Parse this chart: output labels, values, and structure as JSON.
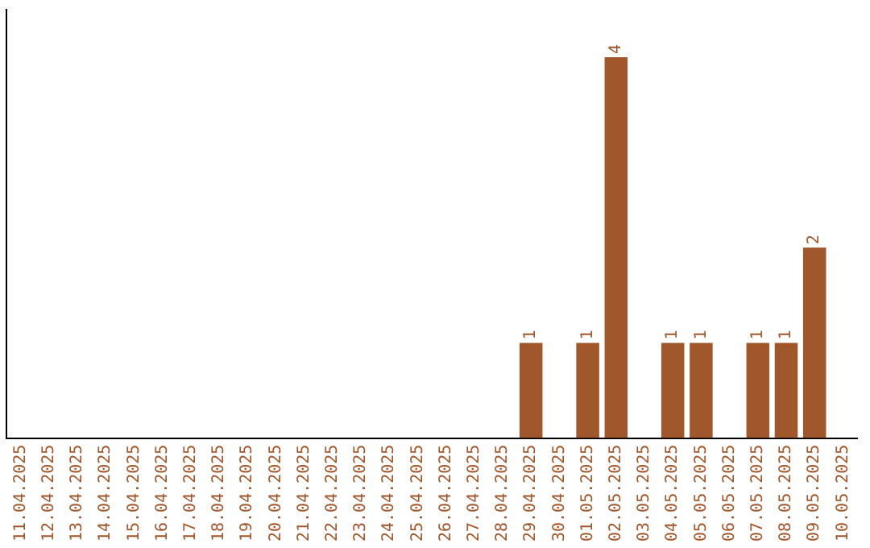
{
  "chart_data": {
    "type": "bar",
    "categories": [
      "11.04.2025",
      "12.04.2025",
      "13.04.2025",
      "14.04.2025",
      "15.04.2025",
      "16.04.2025",
      "17.04.2025",
      "18.04.2025",
      "19.04.2025",
      "20.04.2025",
      "21.04.2025",
      "22.04.2025",
      "23.04.2025",
      "24.04.2025",
      "25.04.2025",
      "26.04.2025",
      "27.04.2025",
      "28.04.2025",
      "29.04.2025",
      "30.04.2025",
      "01.05.2025",
      "02.05.2025",
      "03.05.2025",
      "04.05.2025",
      "05.05.2025",
      "06.05.2025",
      "07.05.2025",
      "08.05.2025",
      "09.05.2025",
      "10.05.2025"
    ],
    "values": [
      null,
      null,
      null,
      null,
      null,
      null,
      null,
      null,
      null,
      null,
      null,
      null,
      null,
      null,
      null,
      null,
      null,
      null,
      1,
      null,
      1,
      4,
      null,
      1,
      1,
      null,
      1,
      1,
      2,
      null
    ],
    "color": "#a0572b",
    "data_labels": true,
    "grid": false,
    "legend": false,
    "tick_labels": "x"
  }
}
